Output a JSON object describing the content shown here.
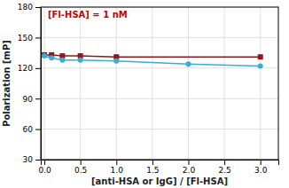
{
  "chart_data": {
    "type": "line",
    "annotations": [
      {
        "text": "[Fl-HSA] = 1 nM",
        "color": "#cc0000"
      }
    ],
    "xlabel": "[anti-HSA or IgG]  /  [Fl-HSA]",
    "ylabel": "Polarization [mP]",
    "xlim": [
      -0.05,
      3.25
    ],
    "ylim": [
      30,
      180
    ],
    "xticks": [
      {
        "value": 0.0,
        "label": "0.0"
      },
      0.5,
      {
        "value": 1.0,
        "label": "1.0"
      },
      1.5,
      {
        "value": 2.0,
        "label": "2.0"
      },
      2.5,
      {
        "value": 3.0,
        "label": "3.0"
      }
    ],
    "yticks": [
      30,
      60,
      90,
      120,
      150,
      180
    ],
    "grid": true,
    "series": [
      {
        "color": "#8b1a1a",
        "marker": "square",
        "x": [
          0.0,
          0.1,
          0.25,
          0.5,
          1.0,
          3.0
        ],
        "values": [
          133,
          133,
          132,
          132,
          131,
          131
        ]
      },
      {
        "color": "#3badd4",
        "marker": "circle",
        "x": [
          0.0,
          0.1,
          0.25,
          0.5,
          1.0,
          2.0,
          3.0
        ],
        "values": [
          132,
          130,
          128,
          128,
          127,
          124,
          122
        ]
      }
    ]
  }
}
